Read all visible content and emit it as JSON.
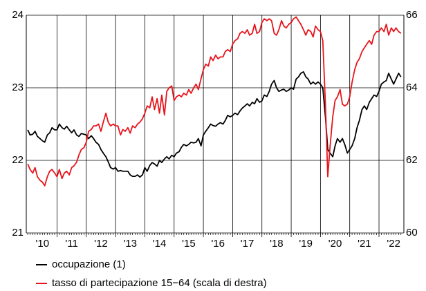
{
  "chart_data": {
    "type": "line",
    "x": [
      2010,
      2010.08,
      2010.17,
      2010.25,
      2010.33,
      2010.42,
      2010.5,
      2010.58,
      2010.67,
      2010.75,
      2010.83,
      2010.92,
      2011,
      2011.08,
      2011.17,
      2011.25,
      2011.33,
      2011.42,
      2011.5,
      2011.58,
      2011.67,
      2011.75,
      2011.83,
      2011.92,
      2012,
      2012.08,
      2012.17,
      2012.25,
      2012.33,
      2012.42,
      2012.5,
      2012.58,
      2012.67,
      2012.75,
      2012.83,
      2012.92,
      2013,
      2013.08,
      2013.17,
      2013.25,
      2013.33,
      2013.42,
      2013.5,
      2013.58,
      2013.67,
      2013.75,
      2013.83,
      2013.92,
      2014,
      2014.08,
      2014.17,
      2014.25,
      2014.33,
      2014.42,
      2014.5,
      2014.58,
      2014.67,
      2014.75,
      2014.83,
      2014.92,
      2015,
      2015.08,
      2015.17,
      2015.25,
      2015.33,
      2015.42,
      2015.5,
      2015.58,
      2015.67,
      2015.75,
      2015.83,
      2015.92,
      2016,
      2016.08,
      2016.17,
      2016.25,
      2016.33,
      2016.42,
      2016.5,
      2016.58,
      2016.67,
      2016.75,
      2016.83,
      2016.92,
      2017,
      2017.08,
      2017.17,
      2017.25,
      2017.33,
      2017.42,
      2017.5,
      2017.58,
      2017.67,
      2017.75,
      2017.83,
      2017.92,
      2018,
      2018.08,
      2018.17,
      2018.25,
      2018.33,
      2018.42,
      2018.5,
      2018.58,
      2018.67,
      2018.75,
      2018.83,
      2018.92,
      2019,
      2019.08,
      2019.17,
      2019.25,
      2019.33,
      2019.42,
      2019.5,
      2019.58,
      2019.67,
      2019.75,
      2019.83,
      2019.92,
      2020,
      2020.08,
      2020.17,
      2020.25,
      2020.33,
      2020.42,
      2020.5,
      2020.58,
      2020.67,
      2020.75,
      2020.83,
      2020.92,
      2021,
      2021.08,
      2021.17,
      2021.25,
      2021.33,
      2021.42,
      2021.5,
      2021.58,
      2021.67,
      2021.75,
      2021.83,
      2021.92,
      2022,
      2022.08,
      2022.17,
      2022.25,
      2022.33,
      2022.42,
      2022.5,
      2022.58,
      2022.67,
      2022.75
    ],
    "series": [
      {
        "name": "occupazione (1)",
        "color": "#000000",
        "axis": "y",
        "values": [
          22.42,
          22.35,
          22.36,
          22.4,
          22.33,
          22.3,
          22.27,
          22.25,
          22.35,
          22.38,
          22.45,
          22.42,
          22.42,
          22.5,
          22.45,
          22.43,
          22.47,
          22.42,
          22.38,
          22.42,
          22.35,
          22.33,
          22.37,
          22.36,
          22.35,
          22.3,
          22.34,
          22.3,
          22.25,
          22.22,
          22.15,
          22.1,
          22.05,
          21.98,
          21.9,
          21.88,
          21.9,
          21.85,
          21.86,
          21.85,
          21.85,
          21.85,
          21.8,
          21.78,
          21.78,
          21.8,
          21.77,
          21.8,
          21.9,
          21.85,
          21.93,
          21.97,
          21.95,
          21.92,
          22.0,
          21.97,
          22.02,
          22.05,
          22.02,
          22.07,
          22.05,
          22.1,
          22.12,
          22.18,
          22.22,
          22.2,
          22.22,
          22.25,
          22.24,
          22.25,
          22.3,
          22.2,
          22.35,
          22.4,
          22.45,
          22.5,
          22.48,
          22.47,
          22.5,
          22.52,
          22.5,
          22.55,
          22.62,
          22.6,
          22.62,
          22.65,
          22.63,
          22.68,
          22.72,
          22.75,
          22.78,
          22.75,
          22.8,
          22.78,
          22.85,
          22.8,
          22.82,
          22.9,
          22.88,
          22.95,
          23.05,
          23.1,
          23.0,
          22.95,
          22.97,
          22.98,
          22.95,
          22.97,
          23.0,
          22.98,
          23.12,
          23.15,
          23.2,
          23.22,
          23.15,
          23.12,
          23.05,
          23.08,
          23.05,
          23.08,
          23.05,
          23.0,
          22.6,
          22.15,
          22.1,
          22.05,
          22.2,
          22.3,
          22.25,
          22.3,
          22.22,
          22.1,
          22.15,
          22.2,
          22.3,
          22.45,
          22.55,
          22.7,
          22.75,
          22.7,
          22.8,
          22.85,
          22.9,
          22.88,
          22.95,
          23.05,
          23.08,
          23.1,
          23.2,
          23.12,
          23.05,
          23.12,
          23.2,
          23.15
        ]
      },
      {
        "name": "tasso di partecipazione 15−64 (scala di destra)",
        "color": "#e8141c",
        "axis": "y2",
        "values": [
          61.9,
          61.75,
          61.65,
          61.8,
          61.55,
          61.45,
          61.4,
          61.3,
          61.55,
          61.7,
          61.75,
          61.65,
          61.55,
          61.75,
          61.5,
          61.65,
          61.7,
          61.6,
          61.8,
          61.85,
          61.95,
          62.15,
          62.3,
          62.35,
          62.5,
          62.8,
          62.85,
          62.95,
          62.95,
          63.0,
          62.8,
          63.05,
          63.3,
          63.05,
          62.95,
          63.0,
          62.95,
          62.95,
          62.7,
          62.85,
          62.8,
          62.9,
          62.75,
          62.95,
          62.9,
          63.0,
          63.05,
          63.15,
          63.3,
          63.5,
          63.45,
          63.75,
          63.4,
          63.7,
          63.3,
          63.8,
          63.25,
          63.9,
          64.0,
          64.05,
          63.65,
          63.75,
          63.8,
          63.75,
          63.85,
          63.8,
          63.95,
          63.85,
          64.0,
          64.1,
          63.95,
          64.25,
          64.5,
          64.65,
          64.6,
          64.85,
          64.75,
          64.9,
          64.8,
          64.85,
          64.85,
          65.0,
          65.05,
          65.0,
          65.2,
          65.3,
          65.35,
          65.5,
          65.55,
          65.5,
          65.6,
          65.45,
          65.5,
          65.75,
          65.5,
          65.55,
          65.8,
          65.9,
          65.85,
          65.9,
          65.85,
          65.5,
          65.45,
          65.6,
          65.85,
          65.7,
          65.65,
          65.75,
          65.8,
          65.9,
          65.95,
          65.85,
          65.75,
          65.6,
          65.45,
          65.6,
          65.55,
          65.4,
          65.7,
          65.6,
          65.55,
          65.3,
          63.55,
          61.55,
          62.4,
          63.2,
          63.65,
          63.75,
          63.95,
          63.55,
          63.5,
          63.55,
          63.75,
          64.15,
          64.5,
          64.7,
          64.8,
          65.0,
          65.1,
          65.2,
          65.3,
          65.2,
          65.45,
          65.55,
          65.55,
          65.65,
          65.55,
          65.75,
          65.45,
          65.65,
          65.55,
          65.65,
          65.55,
          65.5
        ]
      }
    ],
    "xlim": [
      2009.95,
      2022.85
    ],
    "xticks": [
      {
        "value": 2010.5,
        "label": "'10"
      },
      {
        "value": 2011.5,
        "label": "'11"
      },
      {
        "value": 2012.5,
        "label": "'12"
      },
      {
        "value": 2013.5,
        "label": "'13"
      },
      {
        "value": 2014.5,
        "label": "'14"
      },
      {
        "value": 2015.5,
        "label": "'15"
      },
      {
        "value": 2016.5,
        "label": "'16"
      },
      {
        "value": 2017.5,
        "label": "'17"
      },
      {
        "value": 2018.5,
        "label": "'18"
      },
      {
        "value": 2019.5,
        "label": "'19"
      },
      {
        "value": 2020.5,
        "label": "'20"
      },
      {
        "value": 2021.5,
        "label": "'21"
      },
      {
        "value": 2022.5,
        "label": "'22"
      }
    ],
    "xgrid": [
      2011,
      2012,
      2013,
      2014,
      2015,
      2016,
      2017,
      2018,
      2019,
      2020,
      2021,
      2022
    ],
    "ylim": [
      21,
      24
    ],
    "yticks": [
      21,
      22,
      23,
      24
    ],
    "y2lim": [
      60,
      66
    ],
    "y2ticks": [
      60,
      62,
      64,
      66
    ],
    "grid": true,
    "legend": "bottom"
  }
}
